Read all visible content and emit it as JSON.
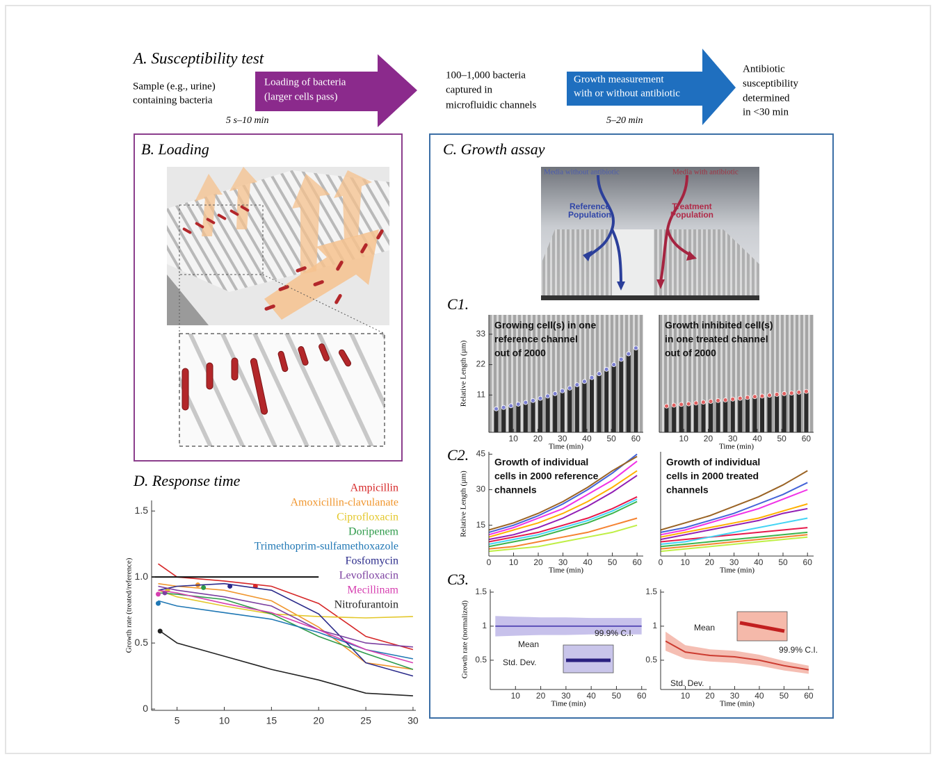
{
  "panel_a": {
    "title": "A. Susceptibility test",
    "sample": [
      "Sample (e.g., urine)",
      "containing bacteria"
    ],
    "loading_arrow": [
      "Loading of bacteria",
      "(larger cells pass)"
    ],
    "loading_time": "5 s–10 min",
    "captured": [
      "100–1,000 bacteria",
      "captured in",
      "microfluidic channels"
    ],
    "growth_arrow": [
      "Growth measurement",
      "with or without antibiotic"
    ],
    "growth_time": "5–20 min",
    "result": [
      "Antibiotic",
      "susceptibility",
      "determined",
      "in <30 min"
    ]
  },
  "panel_b": {
    "title": "B. Loading"
  },
  "panel_c": {
    "title": "C. Growth assay",
    "media_without": "Media without antibiotic",
    "media_with": "Media with antibiotic",
    "reference": [
      "Reference",
      "Population"
    ],
    "treatment": [
      "Treatment",
      "Population"
    ],
    "c1": "C1.",
    "c2": "C2.",
    "c3": "C3."
  },
  "chart_data": [
    {
      "type": "line",
      "title": "D. Response time",
      "ylabel": "Growth rate (treated/reference)",
      "x": [
        3,
        5,
        10,
        15,
        20,
        25,
        30
      ],
      "xlim": [
        2.3,
        30.3
      ],
      "ylim": [
        -0.01,
        1.58
      ],
      "xticks": [
        5,
        10,
        15,
        20,
        25,
        30
      ],
      "yticks": [
        0,
        0.5,
        {
          "value": 1,
          "label": "1.0"
        },
        1.5
      ],
      "hline": 1,
      "hline_end": 20,
      "series": [
        {
          "name": "Ampicillin",
          "color": "#d62728",
          "values": [
            1.1,
            1.0,
            0.97,
            0.93,
            0.8,
            0.55,
            0.45
          ],
          "marker": [
            13.3,
            0.93
          ]
        },
        {
          "name": "Amoxicillin-clavulanate",
          "color": "#f0962e",
          "values": [
            0.95,
            0.93,
            0.9,
            0.82,
            0.62,
            0.35,
            0.3
          ],
          "marker": [
            7.2,
            0.94
          ]
        },
        {
          "name": "Ciprofloxacin",
          "color": "#e3c72a",
          "values": [
            0.9,
            0.85,
            0.78,
            0.72,
            0.7,
            0.69,
            0.7
          ],
          "marker": [
            4.0,
            0.9
          ]
        },
        {
          "name": "Doripenem",
          "color": "#2e9a4a",
          "values": [
            0.88,
            0.87,
            0.83,
            0.72,
            0.55,
            0.42,
            0.3
          ],
          "marker": [
            7.8,
            0.92
          ]
        },
        {
          "name": "Trimethoprim-sulfamethoxazole",
          "color": "#1f77b4",
          "values": [
            0.82,
            0.78,
            0.73,
            0.68,
            0.58,
            0.45,
            0.38
          ],
          "marker": [
            3.0,
            0.8
          ]
        },
        {
          "name": "Fosfomycin",
          "color": "#2a2a8a",
          "values": [
            0.9,
            0.93,
            0.95,
            0.9,
            0.72,
            0.35,
            0.25
          ],
          "marker": [
            10.6,
            0.93
          ]
        },
        {
          "name": "Levofloxacin",
          "color": "#7b3fa0",
          "values": [
            0.93,
            0.9,
            0.85,
            0.78,
            0.6,
            0.5,
            0.47
          ],
          "marker": [
            3.7,
            0.88
          ]
        },
        {
          "name": "Mecillinam",
          "color": "#d63fb0",
          "values": [
            0.9,
            0.88,
            0.8,
            0.73,
            0.6,
            0.45,
            0.35
          ],
          "marker": [
            3.0,
            0.87
          ]
        },
        {
          "name": "Nitrofurantoin",
          "color": "#222222",
          "values": [
            0.6,
            0.5,
            0.4,
            0.3,
            0.22,
            0.12,
            0.1
          ],
          "marker": [
            3.2,
            0.59
          ]
        }
      ]
    },
    {
      "type": "bar",
      "ylabel": "Relative Length (µm)",
      "xlabel": "Time (min)",
      "annotation": [
        "Growing cell(s) in one",
        "reference channel",
        "out of 2000"
      ],
      "bar_color": "#2b2b2b",
      "x": [
        3,
        6,
        9,
        12,
        15,
        18,
        21,
        24,
        27,
        30,
        33,
        36,
        39,
        42,
        45,
        48,
        51,
        54,
        57,
        60
      ],
      "xlim": [
        0,
        63
      ],
      "ylim": [
        -2.5,
        40
      ],
      "xticks": [
        10,
        20,
        30,
        40,
        50,
        60
      ],
      "yticks": [
        11,
        22,
        33
      ],
      "series": [
        {
          "color": "#7b7fd1",
          "values": [
            6.0,
            6.5,
            7.1,
            7.7,
            8.3,
            9.0,
            9.8,
            10.6,
            11.5,
            12.5,
            13.5,
            14.7,
            15.9,
            17.3,
            18.7,
            20.3,
            22.0,
            23.9,
            25.9,
            28.0
          ]
        }
      ]
    },
    {
      "type": "bar",
      "xlabel": "Time (min)",
      "annotation": [
        "Growth inhibited cell(s)",
        "in one treated channel",
        "out of 2000"
      ],
      "bar_color": "#2b2b2b",
      "x": [
        3,
        6,
        9,
        12,
        15,
        18,
        21,
        24,
        27,
        30,
        33,
        36,
        39,
        42,
        45,
        48,
        51,
        54,
        57,
        60
      ],
      "xlim": [
        0,
        63
      ],
      "ylim": [
        -2.5,
        40
      ],
      "xticks": [
        10,
        20,
        30,
        40,
        50,
        60
      ],
      "series": [
        {
          "color": "#e06060",
          "values": [
            7.0,
            7.3,
            7.6,
            7.8,
            8.1,
            8.4,
            8.7,
            9.0,
            9.2,
            9.5,
            9.8,
            10.1,
            10.4,
            10.6,
            10.9,
            11.2,
            11.5,
            11.7,
            12.0,
            12.3
          ]
        }
      ]
    },
    {
      "type": "line",
      "ylabel": "Relative Length (µm)",
      "xlabel": "Time (min)",
      "annotation": [
        "Growth of individual",
        "cells in 2000 reference",
        "channels"
      ],
      "x": [
        0,
        10,
        20,
        30,
        40,
        50,
        60
      ],
      "xlim": [
        0,
        62.5
      ],
      "ylim": [
        2,
        46
      ],
      "xticks": [
        0,
        10,
        20,
        30,
        40,
        50,
        60
      ],
      "yticks": [
        15,
        30,
        45
      ],
      "series": [
        {
          "color": "#e6194b",
          "values": [
            8,
            10,
            12,
            15,
            18,
            22,
            27
          ]
        },
        {
          "color": "#3cb44b",
          "values": [
            6,
            8,
            10,
            13,
            16,
            20,
            25
          ]
        },
        {
          "color": "#ffb000",
          "values": [
            10,
            13,
            16,
            20,
            25,
            31,
            38
          ]
        },
        {
          "color": "#4363d8",
          "values": [
            12,
            15,
            19,
            24,
            30,
            37,
            45
          ]
        },
        {
          "color": "#f58231",
          "values": [
            5,
            6,
            8,
            10,
            12,
            15,
            18
          ]
        },
        {
          "color": "#911eb4",
          "values": [
            9,
            11,
            14,
            18,
            23,
            29,
            36
          ]
        },
        {
          "color": "#42d4f4",
          "values": [
            7,
            9,
            11,
            14,
            17,
            21,
            26
          ]
        },
        {
          "color": "#f032e6",
          "values": [
            11,
            14,
            18,
            22,
            28,
            34,
            42
          ]
        },
        {
          "color": "#bfef45",
          "values": [
            4,
            5,
            6,
            8,
            10,
            12,
            15
          ]
        },
        {
          "color": "#9a6324",
          "values": [
            13,
            16,
            20,
            25,
            31,
            38,
            44
          ]
        }
      ]
    },
    {
      "type": "line",
      "xlabel": "Time (min)",
      "annotation": [
        "Growth of individual",
        "cells in 2000 treated",
        "channels"
      ],
      "x": [
        0,
        10,
        20,
        30,
        40,
        50,
        60
      ],
      "xlim": [
        0,
        62.5
      ],
      "ylim": [
        2,
        46
      ],
      "xticks": [
        0,
        10,
        20,
        30,
        40,
        50,
        60
      ],
      "series": [
        {
          "color": "#e6194b",
          "values": [
            8,
            9,
            10,
            11,
            12,
            13,
            14
          ]
        },
        {
          "color": "#3cb44b",
          "values": [
            6,
            7,
            8,
            9,
            10,
            11,
            12
          ]
        },
        {
          "color": "#ffb000",
          "values": [
            10,
            12,
            14,
            16,
            18,
            21,
            24
          ]
        },
        {
          "color": "#4363d8",
          "values": [
            12,
            14,
            17,
            20,
            24,
            28,
            33
          ]
        },
        {
          "color": "#f58231",
          "values": [
            5,
            6,
            7,
            8,
            9,
            10,
            11
          ]
        },
        {
          "color": "#911eb4",
          "values": [
            9,
            11,
            13,
            15,
            17,
            20,
            22
          ]
        },
        {
          "color": "#42d4f4",
          "values": [
            7,
            8,
            10,
            12,
            14,
            16,
            18
          ]
        },
        {
          "color": "#f032e6",
          "values": [
            11,
            13,
            16,
            19,
            22,
            26,
            30
          ]
        },
        {
          "color": "#bfef45",
          "values": [
            4,
            5,
            6,
            7,
            8,
            9,
            10
          ]
        },
        {
          "color": "#9a6324",
          "values": [
            13,
            16,
            19,
            23,
            27,
            32,
            38
          ]
        }
      ]
    },
    {
      "type": "band",
      "ylabel": "Growth rate (normalized)",
      "xlabel": "Time (min)",
      "annotations": [
        "Mean",
        "99.9% C.I.",
        "Std. Dev."
      ],
      "x": [
        2,
        10,
        20,
        30,
        40,
        50,
        60
      ],
      "xlim": [
        0,
        62
      ],
      "ylim": [
        0.07,
        1.54
      ],
      "xticks": [
        10,
        20,
        30,
        40,
        50,
        60
      ],
      "yticks": [
        0.5,
        1,
        1.5
      ],
      "series": [
        {
          "color": "#5b4fb8",
          "band_color": "#bdb6e8",
          "values": [
            1,
            1,
            1,
            1,
            1,
            1,
            1
          ],
          "error": [
            0.15,
            0.14,
            0.13,
            0.13,
            0.12,
            0.12,
            0.12
          ]
        }
      ]
    },
    {
      "type": "band",
      "xlabel": "Time (min)",
      "annotations": [
        "Mean",
        "99.9% C.I.",
        "Std. Dev."
      ],
      "x": [
        2,
        10,
        20,
        30,
        40,
        50,
        60
      ],
      "xlim": [
        0,
        62
      ],
      "ylim": [
        0.07,
        1.54
      ],
      "xticks": [
        10,
        20,
        30,
        40,
        50,
        60
      ],
      "yticks": [
        0.5,
        1,
        1.5
      ],
      "series": [
        {
          "color": "#cc3b30",
          "band_color": "#f3b3a6",
          "values": [
            0.78,
            0.62,
            0.57,
            0.55,
            0.5,
            0.42,
            0.36
          ],
          "error": [
            0.14,
            0.1,
            0.09,
            0.09,
            0.08,
            0.07,
            0.06
          ]
        }
      ]
    }
  ]
}
